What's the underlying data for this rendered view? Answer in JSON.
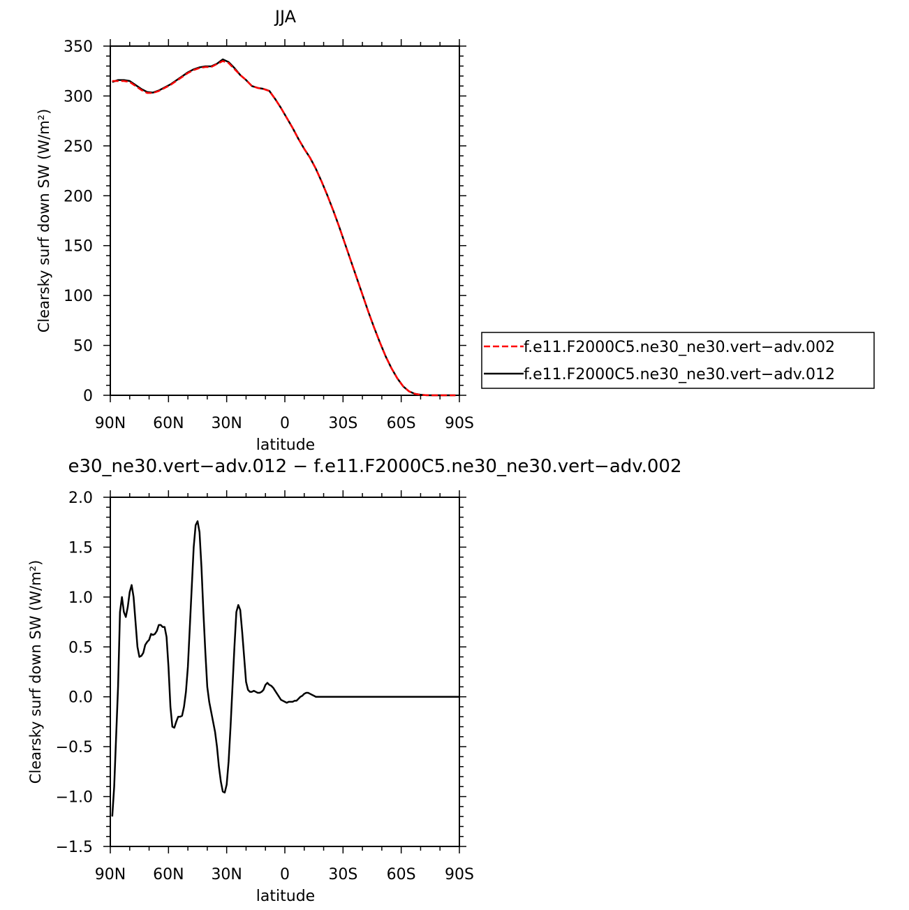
{
  "chart_data": [
    {
      "type": "line",
      "title": "JJA",
      "xlabel": "latitude",
      "ylabel": "Clearsky surf down SW (W/m²)",
      "xlim": [
        90,
        -90
      ],
      "ylim": [
        0,
        350
      ],
      "x_ticks": [
        90,
        60,
        30,
        0,
        -30,
        -60,
        -90
      ],
      "x_tick_labels": [
        "90N",
        "60N",
        "30N",
        "0",
        "30S",
        "60S",
        "90S"
      ],
      "y_ticks": [
        0,
        50,
        100,
        150,
        200,
        250,
        300,
        350
      ],
      "y_tick_labels": [
        "0",
        "50",
        "100",
        "150",
        "200",
        "250",
        "300",
        "350"
      ],
      "legend_position": "right",
      "series": [
        {
          "name": "f.e11.F2000C5.ne30_ne30.vert−adv.002",
          "color": "#ff0000",
          "dash": "dashed",
          "x": [
            89,
            86,
            83,
            80,
            77,
            74,
            71,
            68,
            65,
            62,
            59,
            56,
            53,
            50,
            47,
            44,
            41,
            38,
            35,
            32,
            29,
            26,
            23,
            20,
            17,
            14,
            11,
            8,
            5,
            2,
            -1,
            -4,
            -7,
            -10,
            -13,
            -16,
            -19,
            -22,
            -25,
            -28,
            -31,
            -34,
            -37,
            -40,
            -43,
            -46,
            -49,
            -52,
            -55,
            -58,
            -61,
            -64,
            -67,
            -70,
            -73,
            -76,
            -79,
            -82,
            -85,
            -88
          ],
          "y": [
            315,
            315,
            315,
            314,
            310,
            306,
            303,
            303,
            305,
            308,
            311,
            315,
            319,
            323,
            326,
            328,
            329,
            329,
            332,
            335,
            333,
            327,
            321,
            316,
            310,
            308,
            307,
            305,
            297,
            288,
            278,
            268,
            257,
            247,
            238,
            227,
            214,
            200,
            185,
            169,
            152,
            135,
            118,
            101,
            84,
            68,
            53,
            39,
            27,
            17,
            9,
            4,
            1.5,
            0.5,
            0.1,
            0,
            0,
            0,
            0,
            0
          ]
        },
        {
          "name": "f.e11.F2000C5.ne30_ne30.vert−adv.012",
          "color": "#000000",
          "dash": "solid",
          "x": [
            89,
            86,
            83,
            80,
            77,
            74,
            71,
            68,
            65,
            62,
            59,
            56,
            53,
            50,
            47,
            44,
            41,
            38,
            35,
            32,
            29,
            26,
            23,
            20,
            17,
            14,
            11,
            8,
            5,
            2,
            -1,
            -4,
            -7,
            -10,
            -13,
            -16,
            -19,
            -22,
            -25,
            -28,
            -31,
            -34,
            -37,
            -40,
            -43,
            -46,
            -49,
            -52,
            -55,
            -58,
            -61,
            -64,
            -67,
            -70,
            -73,
            -76,
            -79,
            -82,
            -85,
            -88
          ],
          "y": [
            314,
            316,
            316,
            315,
            311,
            307,
            304,
            303.4,
            305.5,
            308.5,
            311.6,
            315.6,
            319.6,
            323.7,
            326.7,
            328.7,
            329.7,
            329.7,
            332.3,
            336.7,
            334,
            328,
            321,
            316,
            310,
            308.1,
            307.1,
            305.1,
            297,
            288,
            278,
            268,
            257,
            247,
            238.1,
            227,
            214,
            200,
            185,
            169,
            152,
            135,
            118,
            101,
            84,
            68,
            53,
            39,
            27,
            17,
            9,
            4,
            1.5,
            0.5,
            0.1,
            0,
            0,
            0,
            0,
            0
          ]
        }
      ]
    },
    {
      "type": "line",
      "title": "e30_ne30.vert−adv.012 − f.e11.F2000C5.ne30_ne30.vert−adv.002",
      "xlabel": "latitude",
      "ylabel": "Clearsky surf down SW (W/m²)",
      "xlim": [
        90,
        -90
      ],
      "ylim": [
        -1.5,
        2.0
      ],
      "x_ticks": [
        90,
        60,
        30,
        0,
        -30,
        -60,
        -90
      ],
      "x_tick_labels": [
        "90N",
        "60N",
        "30N",
        "0",
        "30S",
        "60S",
        "90S"
      ],
      "y_ticks": [
        -1.5,
        -1.0,
        -0.5,
        0.0,
        0.5,
        1.0,
        1.5,
        2.0
      ],
      "y_tick_labels": [
        "−1.5",
        "−1.0",
        "−0.5",
        "0.0",
        "0.5",
        "1.0",
        "1.5",
        "2.0"
      ],
      "series": [
        {
          "color": "#000000",
          "dash": "solid",
          "x": [
            89,
            88,
            87,
            86,
            85,
            84,
            83,
            82,
            81,
            80,
            79,
            78,
            77,
            76,
            75,
            74,
            73,
            72,
            71,
            70,
            69,
            68,
            67,
            66,
            65,
            64,
            63,
            62,
            61,
            60,
            59,
            58,
            57,
            56,
            55,
            54,
            53,
            52,
            51,
            50,
            49,
            48,
            47,
            46,
            45,
            44,
            43,
            42,
            41,
            40,
            39,
            38,
            37,
            36,
            35,
            34,
            33,
            32,
            31,
            30,
            29,
            28,
            27,
            26,
            25,
            24,
            23,
            22,
            21,
            20,
            19,
            18,
            17,
            16,
            15,
            14,
            13,
            12,
            11,
            10,
            9,
            8,
            7,
            6,
            5,
            4,
            3,
            2,
            1,
            0,
            -1,
            -2,
            -3,
            -4,
            -5,
            -6,
            -7,
            -8,
            -9,
            -10,
            -11,
            -12,
            -13,
            -14,
            -15,
            -16,
            -17,
            -18,
            -19,
            -20,
            -22,
            -24,
            -26,
            -28,
            -30,
            -32,
            -34,
            -36,
            -38,
            -40,
            -42,
            -44,
            -46,
            -48,
            -50,
            -52,
            -54,
            -56,
            -58,
            -60,
            -62,
            -64,
            -66,
            -68,
            -70,
            -72,
            -74,
            -76,
            -78,
            -80,
            -84,
            -88,
            -90
          ],
          "y": [
            -1.2,
            -0.9,
            -0.4,
            0.1,
            0.85,
            1.0,
            0.85,
            0.8,
            0.9,
            1.05,
            1.12,
            1.0,
            0.75,
            0.5,
            0.4,
            0.41,
            0.44,
            0.52,
            0.55,
            0.57,
            0.63,
            0.62,
            0.63,
            0.66,
            0.72,
            0.72,
            0.7,
            0.7,
            0.6,
            0.3,
            -0.1,
            -0.3,
            -0.31,
            -0.25,
            -0.2,
            -0.2,
            -0.19,
            -0.1,
            0.05,
            0.3,
            0.7,
            1.1,
            1.5,
            1.72,
            1.76,
            1.65,
            1.3,
            0.85,
            0.45,
            0.1,
            -0.05,
            -0.15,
            -0.25,
            -0.35,
            -0.5,
            -0.7,
            -0.85,
            -0.95,
            -0.96,
            -0.88,
            -0.65,
            -0.3,
            0.1,
            0.5,
            0.85,
            0.92,
            0.87,
            0.65,
            0.4,
            0.15,
            0.07,
            0.05,
            0.05,
            0.06,
            0.05,
            0.04,
            0.04,
            0.05,
            0.07,
            0.12,
            0.14,
            0.12,
            0.11,
            0.09,
            0.06,
            0.03,
            0.0,
            -0.03,
            -0.04,
            -0.05,
            -0.06,
            -0.05,
            -0.05,
            -0.05,
            -0.04,
            -0.04,
            -0.02,
            0.0,
            0.01,
            0.03,
            0.04,
            0.04,
            0.03,
            0.02,
            0.01,
            0.0,
            0.0,
            0.0,
            0.0,
            0.0,
            0.0,
            0.0,
            0.0,
            0.0,
            0.0,
            0.0,
            0.0,
            0.0,
            0.0,
            0.0,
            0.0,
            0.0,
            0.0,
            0.0,
            0.0,
            0.0,
            0.0,
            0.0,
            0.0,
            0.0,
            0.0,
            0.0,
            0.0,
            0.0,
            0.0,
            0.0,
            0.0,
            0.0,
            0.0,
            0.0,
            0.0,
            0.0,
            0.0
          ]
        }
      ]
    }
  ]
}
